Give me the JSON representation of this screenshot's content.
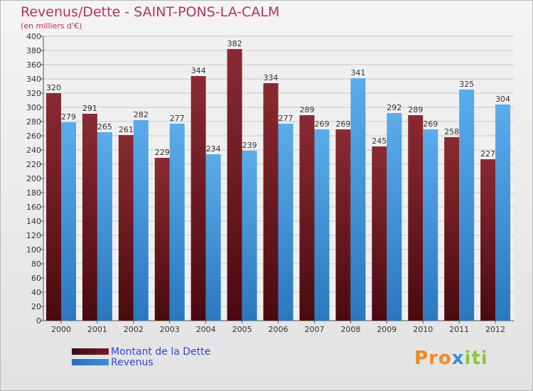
{
  "header": {
    "title": "Revenus/Dette - SAINT-PONS-LA-CALM",
    "subtitle": "(en milliers d'€)"
  },
  "colors": {
    "title": "#b83060",
    "dette": "#7a1a22",
    "revenus": "#3a8fd8",
    "legend_text": "#3344dd",
    "axis_text": "#333333",
    "grid": "#c8c8c8"
  },
  "legend": {
    "dette_label": "Montant de la Dette",
    "revenus_label": "Revenus"
  },
  "logo": {
    "text": "Proxiti",
    "letter_colors": [
      "#f08a20",
      "#f08a20",
      "#f08a20",
      "#2f8fd8",
      "#8cc63f",
      "#8cc63f",
      "#8cc63f"
    ]
  },
  "chart_data": {
    "type": "bar",
    "categories": [
      "2000",
      "2001",
      "2002",
      "2003",
      "2004",
      "2005",
      "2006",
      "2007",
      "2008",
      "2009",
      "2010",
      "2011",
      "2012"
    ],
    "series": [
      {
        "name": "Montant de la Dette",
        "values": [
          320,
          291,
          261,
          229,
          344,
          382,
          334,
          289,
          269,
          245,
          289,
          258,
          227
        ]
      },
      {
        "name": "Revenus",
        "values": [
          279,
          265,
          282,
          277,
          234,
          239,
          277,
          269,
          341,
          292,
          269,
          325,
          304
        ]
      }
    ],
    "ylim": [
      0,
      400
    ],
    "ytick_step": 20,
    "grid": true,
    "legend_position": "bottom-left"
  }
}
